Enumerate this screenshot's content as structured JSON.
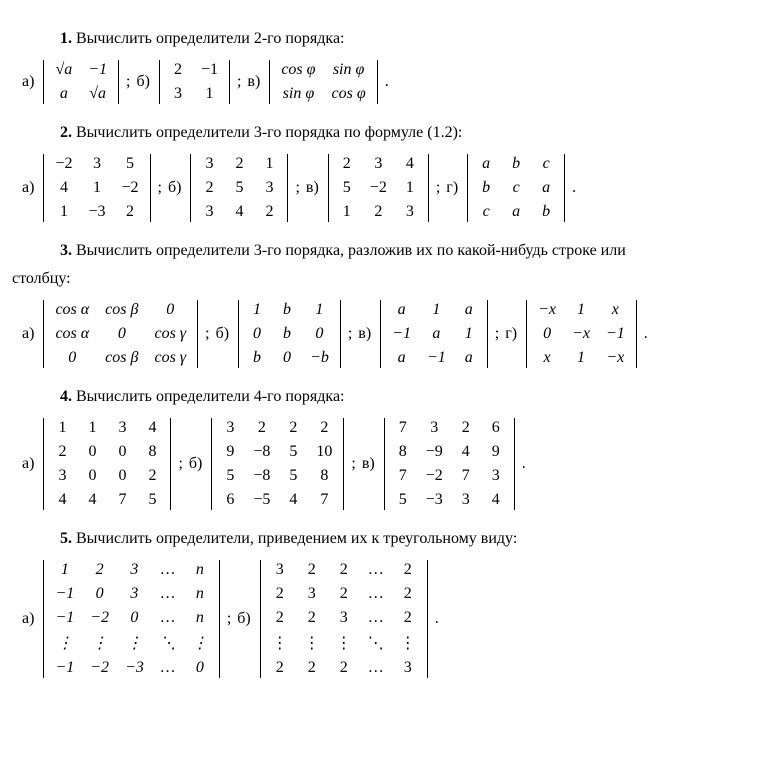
{
  "p1": {
    "heading_num": "1.",
    "heading_text": " Вычислить определители 2-го порядка:",
    "a_label": "а)",
    "b_label": "б)",
    "v_label": "в)",
    "semi": ";  ",
    "period": ".",
    "det_a": [
      [
        "√a",
        "−1"
      ],
      [
        "a",
        "√a"
      ]
    ],
    "det_b": [
      [
        "2",
        "−1"
      ],
      [
        "3",
        "1"
      ]
    ],
    "det_v": [
      [
        "cos φ",
        "sin φ"
      ],
      [
        "sin φ",
        "cos φ"
      ]
    ]
  },
  "p2": {
    "heading_num": "2.",
    "heading_text": " Вычислить определители 3-го порядка по формуле (1.2):",
    "a_label": "а)",
    "b_label": "б)",
    "v_label": "в)",
    "g_label": "г)",
    "semi": ";  ",
    "period": ".",
    "det_a": [
      [
        "−2",
        "3",
        "5"
      ],
      [
        "4",
        "1",
        "−2"
      ],
      [
        "1",
        "−3",
        "2"
      ]
    ],
    "det_b": [
      [
        "3",
        "2",
        "1"
      ],
      [
        "2",
        "5",
        "3"
      ],
      [
        "3",
        "4",
        "2"
      ]
    ],
    "det_v": [
      [
        "2",
        "3",
        "4"
      ],
      [
        "5",
        "−2",
        "1"
      ],
      [
        "1",
        "2",
        "3"
      ]
    ],
    "det_g": [
      [
        "a",
        "b",
        "c"
      ],
      [
        "b",
        "c",
        "a"
      ],
      [
        "c",
        "a",
        "b"
      ]
    ]
  },
  "p3": {
    "heading_num": "3.",
    "heading_text": " Вычислить определители 3-го порядка, разложив их по какой-нибудь строке или",
    "heading_text2": "столбцу:",
    "a_label": "а)",
    "b_label": "б)",
    "v_label": "в)",
    "g_label": "г)",
    "semi": ";  ",
    "period": ".",
    "det_a": [
      [
        "cos α",
        "cos β",
        "0"
      ],
      [
        "cos α",
        "0",
        "cos γ"
      ],
      [
        "0",
        "cos β",
        "cos γ"
      ]
    ],
    "det_b": [
      [
        "1",
        "b",
        "1"
      ],
      [
        "0",
        "b",
        "0"
      ],
      [
        "b",
        "0",
        "−b"
      ]
    ],
    "det_v": [
      [
        "a",
        "1",
        "a"
      ],
      [
        "−1",
        "a",
        "1"
      ],
      [
        "a",
        "−1",
        "a"
      ]
    ],
    "det_g": [
      [
        "−x",
        "1",
        "x"
      ],
      [
        "0",
        "−x",
        "−1"
      ],
      [
        "x",
        "1",
        "−x"
      ]
    ]
  },
  "p4": {
    "heading_num": "4.",
    "heading_text": " Вычислить определители 4-го порядка:",
    "a_label": "а)",
    "b_label": "б)",
    "v_label": "в)",
    "semi": ";  ",
    "period": ".",
    "det_a": [
      [
        "1",
        "1",
        "3",
        "4"
      ],
      [
        "2",
        "0",
        "0",
        "8"
      ],
      [
        "3",
        "0",
        "0",
        "2"
      ],
      [
        "4",
        "4",
        "7",
        "5"
      ]
    ],
    "det_b": [
      [
        "3",
        "2",
        "2",
        "2"
      ],
      [
        "9",
        "−8",
        "5",
        "10"
      ],
      [
        "5",
        "−8",
        "5",
        "8"
      ],
      [
        "6",
        "−5",
        "4",
        "7"
      ]
    ],
    "det_v": [
      [
        "7",
        "3",
        "2",
        "6"
      ],
      [
        "8",
        "−9",
        "4",
        "9"
      ],
      [
        "7",
        "−2",
        "7",
        "3"
      ],
      [
        "5",
        "−3",
        "3",
        "4"
      ]
    ]
  },
  "p5": {
    "heading_num": "5.",
    "heading_text": " Вычислить определители, приведением их к треугольному виду:",
    "a_label": "а)",
    "b_label": "б)",
    "semi": ";  ",
    "period": ".",
    "det_a": [
      [
        "1",
        "2",
        "3",
        "…",
        "n"
      ],
      [
        "−1",
        "0",
        "3",
        "…",
        "n"
      ],
      [
        "−1",
        "−2",
        "0",
        "…",
        "n"
      ],
      [
        "⋮",
        "⋮",
        "⋮",
        "⋱",
        "⋮"
      ],
      [
        "−1",
        "−2",
        "−3",
        "…",
        "0"
      ]
    ],
    "det_b": [
      [
        "3",
        "2",
        "2",
        "…",
        "2"
      ],
      [
        "2",
        "3",
        "2",
        "…",
        "2"
      ],
      [
        "2",
        "2",
        "3",
        "…",
        "2"
      ],
      [
        "⋮",
        "⋮",
        "⋮",
        "⋱",
        "⋮"
      ],
      [
        "2",
        "2",
        "2",
        "…",
        "3"
      ]
    ]
  }
}
